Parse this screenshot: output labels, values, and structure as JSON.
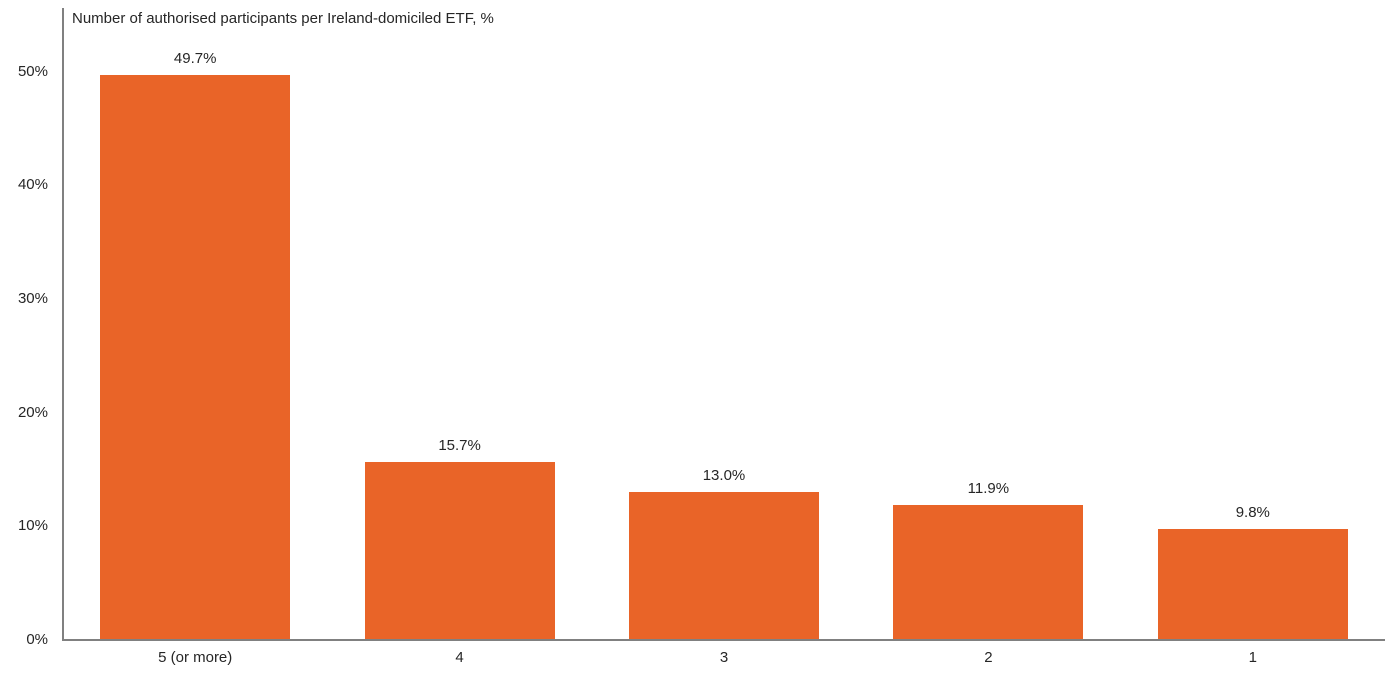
{
  "chart_data": {
    "type": "bar",
    "title": "Number of authorised participants per Ireland-domiciled ETF, %",
    "categories": [
      "5 (or more)",
      "4",
      "3",
      "2",
      "1"
    ],
    "values": [
      49.7,
      15.7,
      13.0,
      11.9,
      9.8
    ],
    "value_labels": [
      "49.7%",
      "15.7%",
      "13.0%",
      "11.9%",
      "9.8%"
    ],
    "xlabel": "",
    "ylabel": "",
    "ylim": [
      0,
      55.6
    ],
    "yticks": [
      {
        "value": 0,
        "label": "0%"
      },
      {
        "value": 10,
        "label": "10%"
      },
      {
        "value": 20,
        "label": "20%"
      },
      {
        "value": 30,
        "label": "30%"
      },
      {
        "value": 40,
        "label": "40%"
      },
      {
        "value": 50,
        "label": "50%"
      }
    ],
    "grid": false,
    "legend": false,
    "colors": {
      "bar": "#E96428",
      "axis": "#808080",
      "text": "#262626",
      "background": "#ffffff"
    }
  }
}
